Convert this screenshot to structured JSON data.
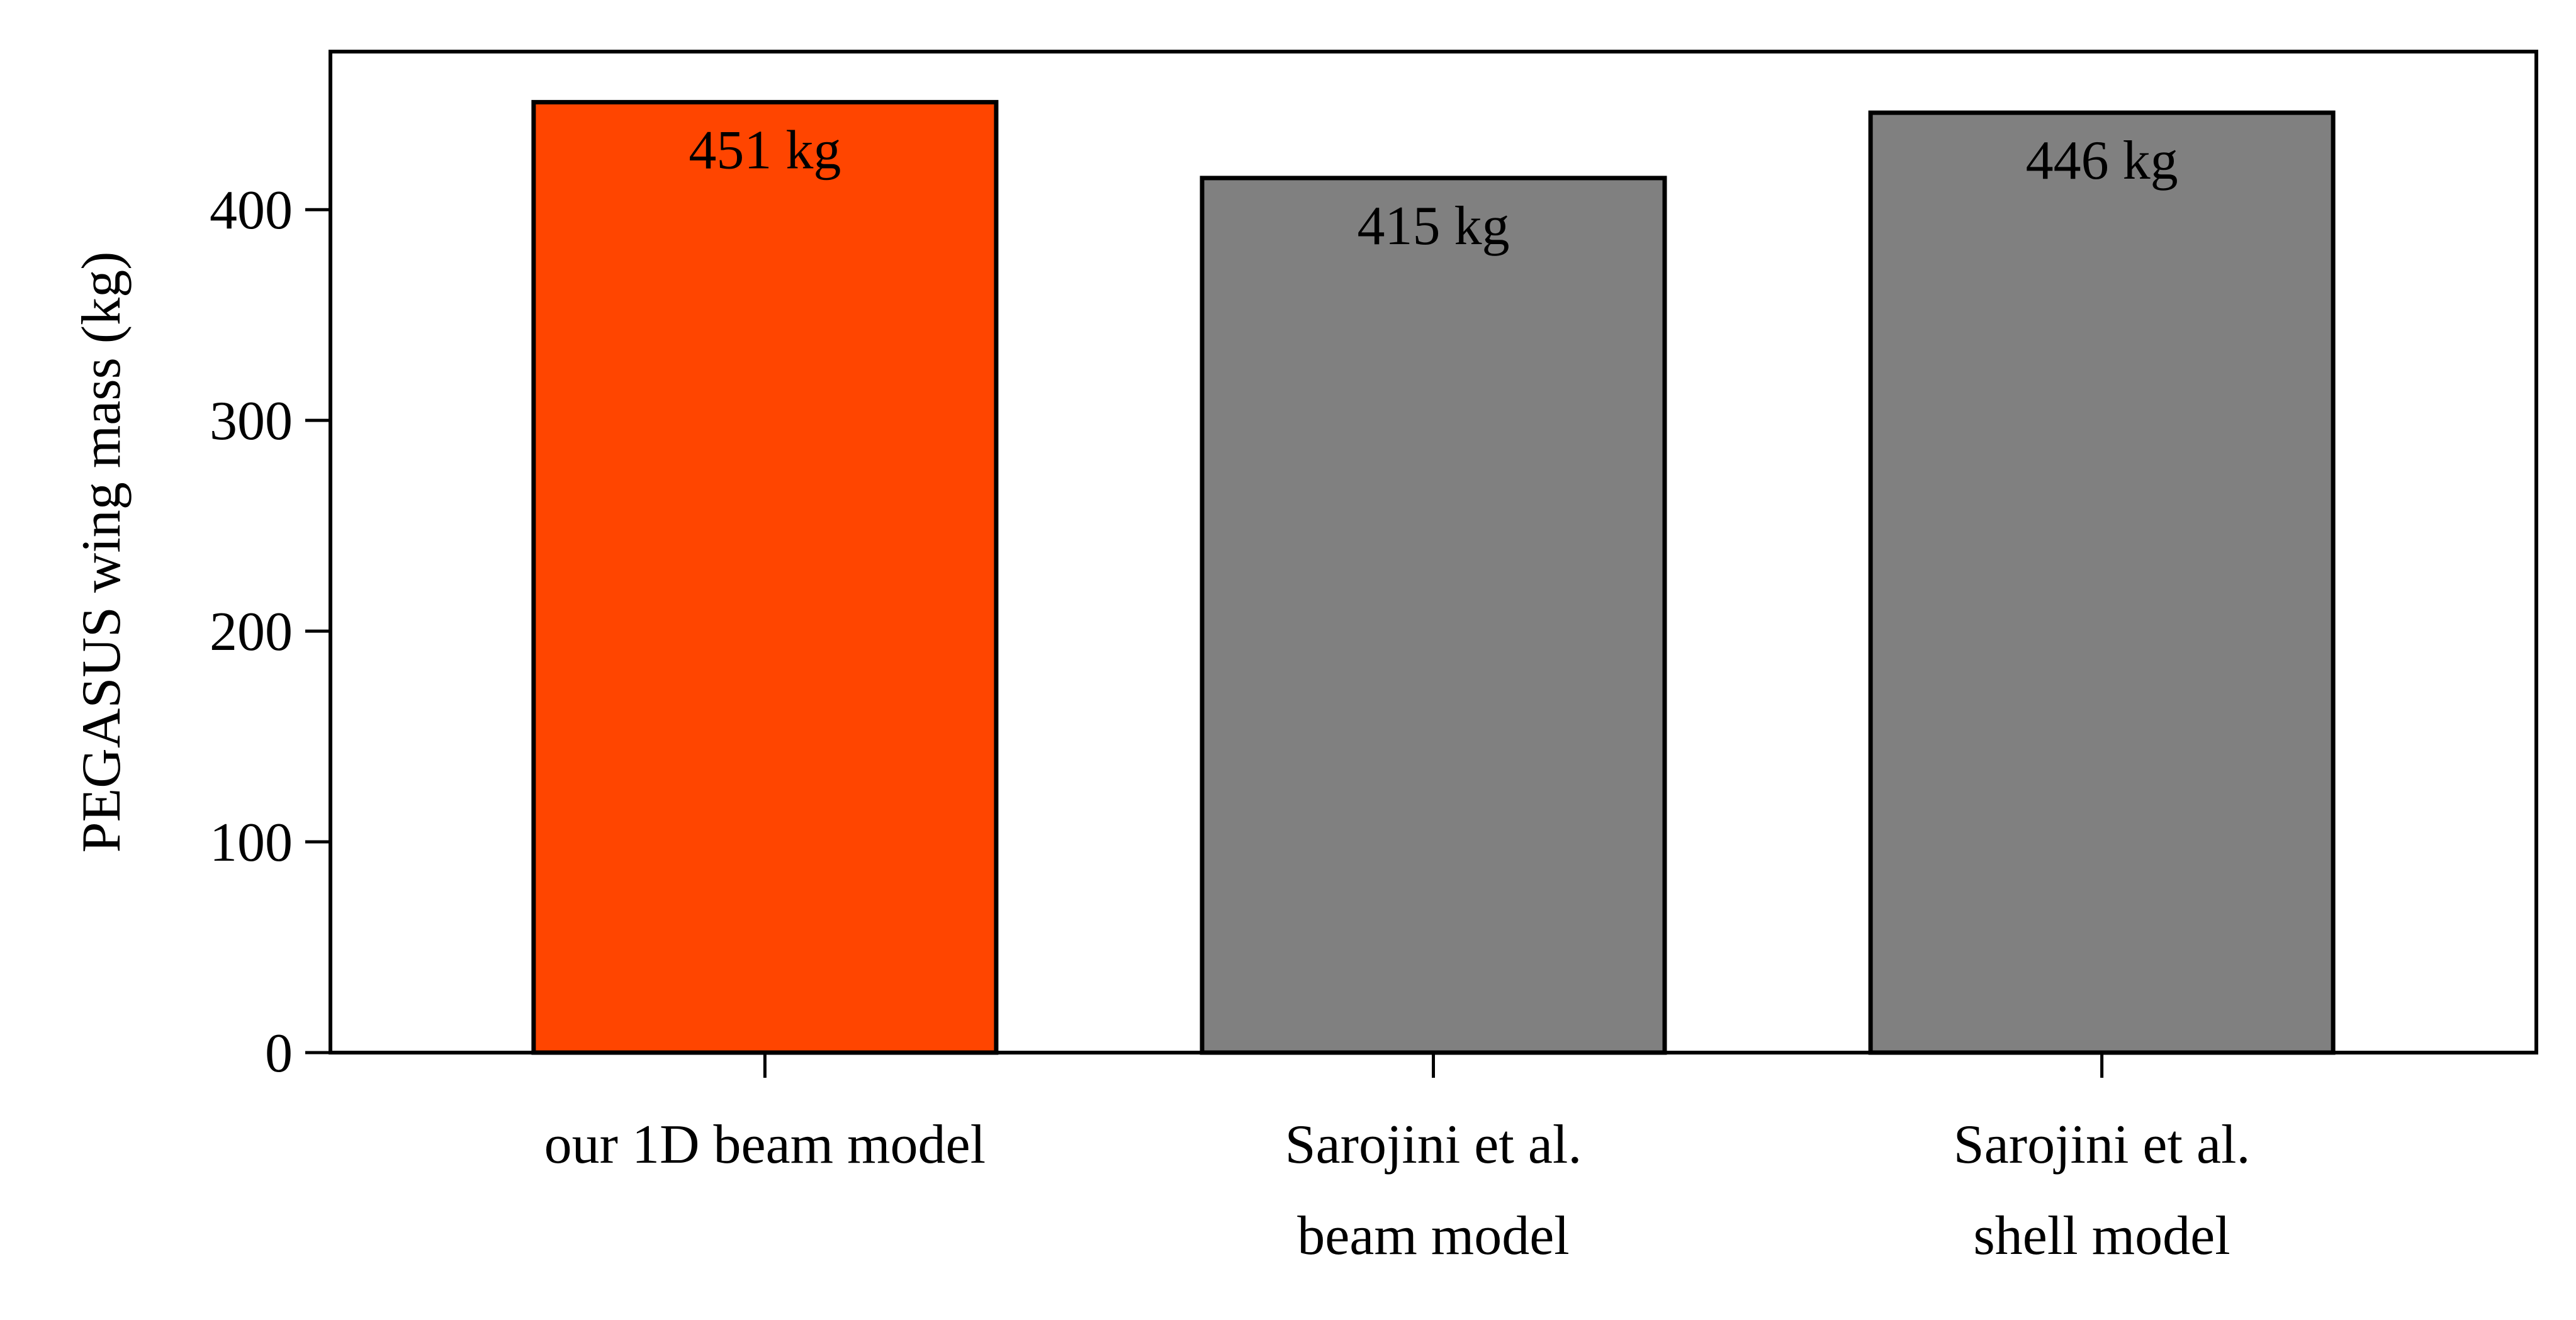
{
  "chart_data": {
    "type": "bar",
    "categories": [
      [
        "our 1D beam model"
      ],
      [
        "Sarojini et al.",
        "beam model"
      ],
      [
        "Sarojini et al.",
        "shell model"
      ]
    ],
    "values": [
      451,
      415,
      446
    ],
    "data_labels": [
      "451 kg",
      "415 kg",
      "446 kg"
    ],
    "bar_colors": [
      "#ff4500",
      "#808080",
      "#808080"
    ],
    "edge_color": "#000000",
    "title": "",
    "xlabel": "",
    "ylabel": "PEGASUS wing mass (kg)",
    "ylim": [
      0,
      475
    ],
    "yticks": [
      0,
      100,
      200,
      300,
      400
    ],
    "grid": false,
    "legend": "none"
  }
}
